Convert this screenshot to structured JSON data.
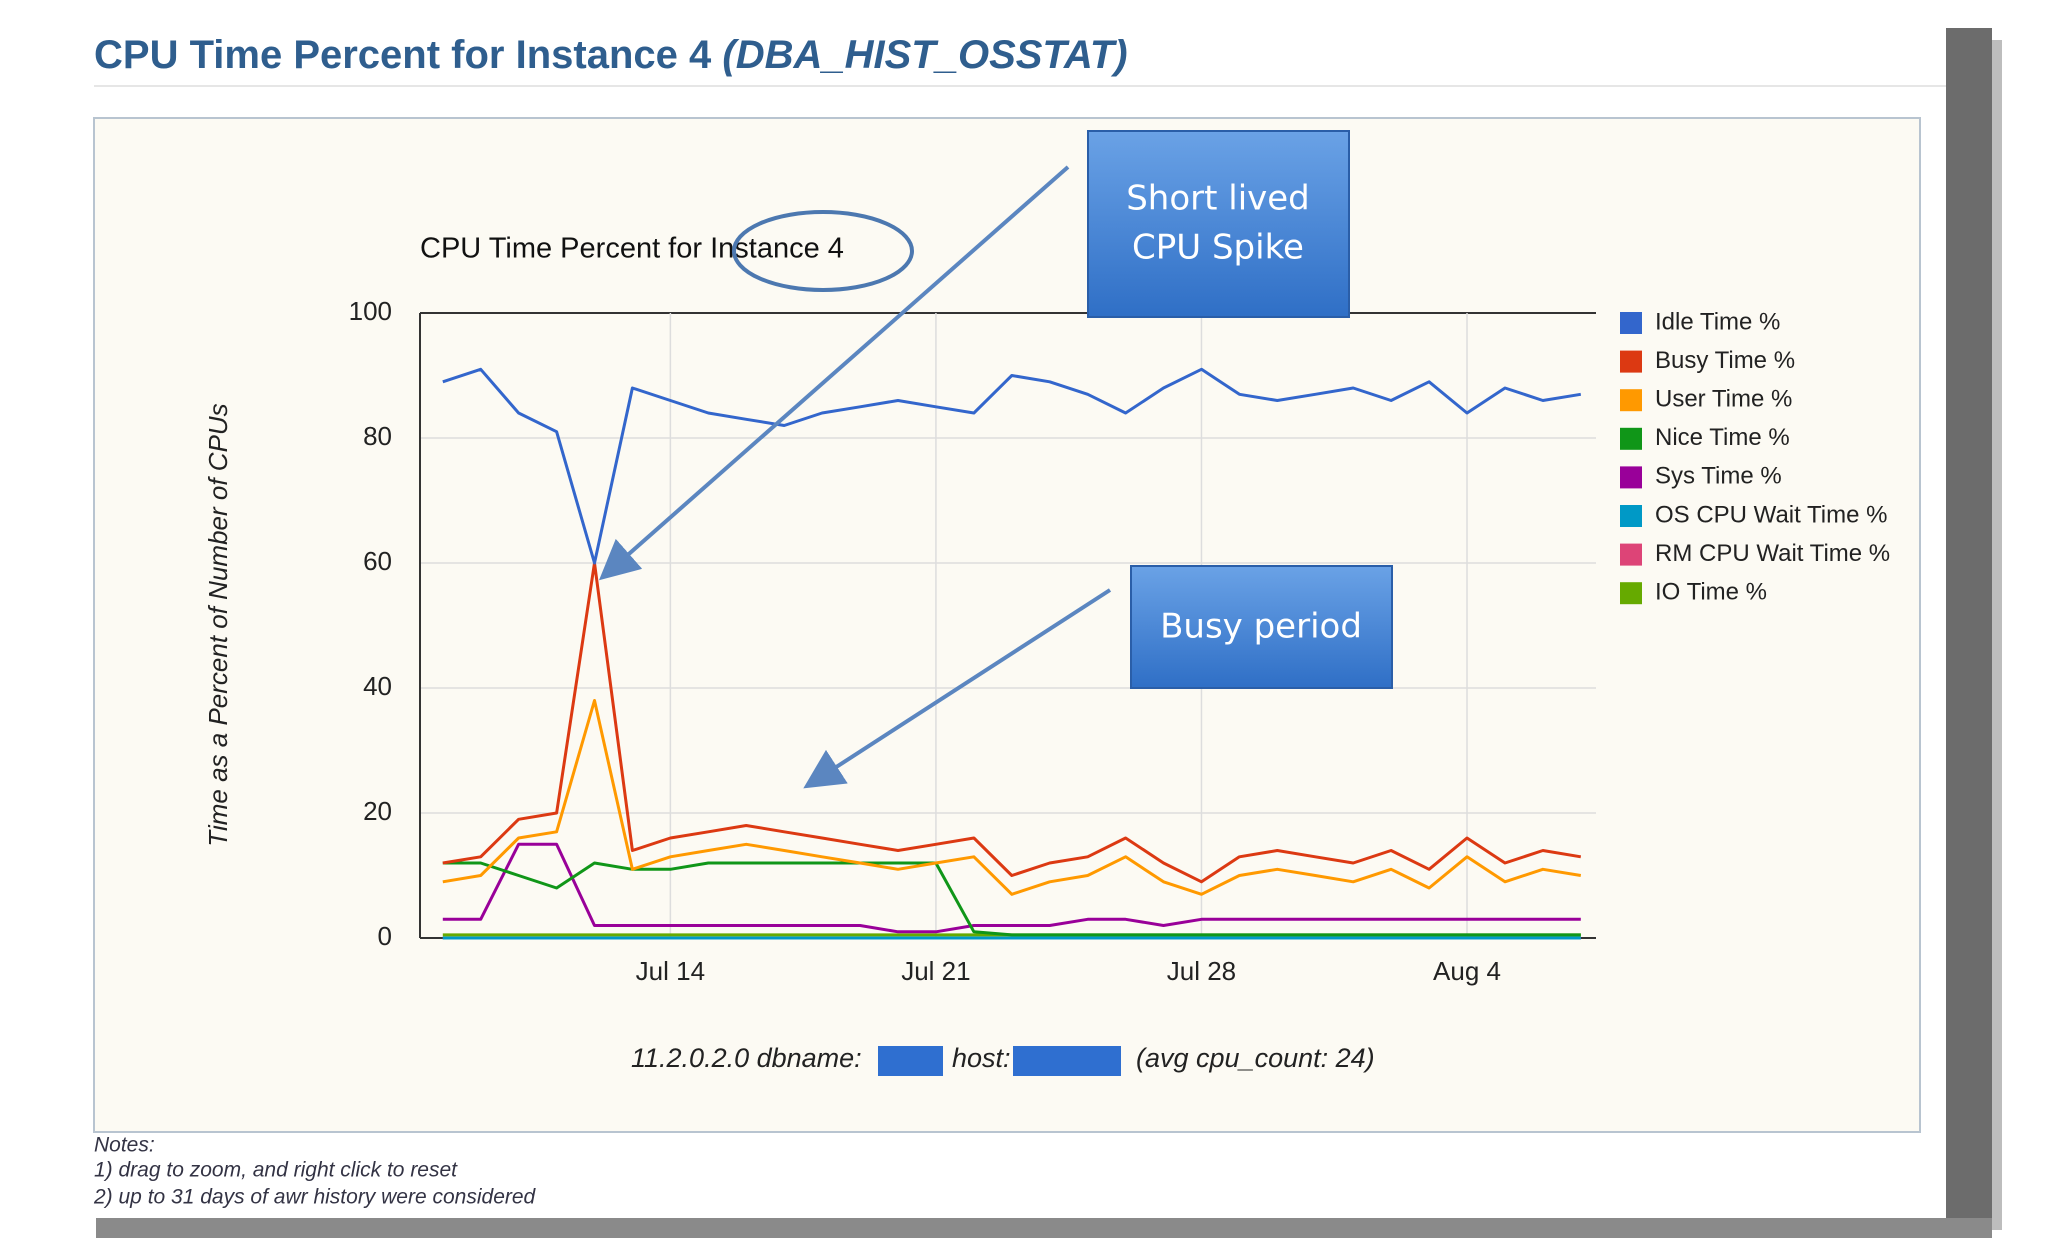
{
  "page_title": "CPU Time Percent for Instance 4",
  "page_title_suffix": "(DBA_HIST_OSSTAT)",
  "chart_data": {
    "type": "line",
    "title": "CPU Time Percent for Instance 4",
    "y_label": "Time as a Percent of Number of CPUs",
    "x": [
      "Jul 8",
      "Jul 9",
      "Jul 10",
      "Jul 11",
      "Jul 12",
      "Jul 13",
      "Jul 14",
      "Jul 15",
      "Jul 16",
      "Jul 17",
      "Jul 18",
      "Jul 19",
      "Jul 20",
      "Jul 21",
      "Jul 22",
      "Jul 23",
      "Jul 24",
      "Jul 25",
      "Jul 26",
      "Jul 27",
      "Jul 28",
      "Jul 29",
      "Jul 30",
      "Jul 31",
      "Aug 1",
      "Aug 2",
      "Aug 3",
      "Aug 4",
      "Aug 5",
      "Aug 6",
      "Aug 7"
    ],
    "xticks": [
      "Jul 14",
      "Jul 21",
      "Jul 28",
      "Aug 4"
    ],
    "ylim": [
      0,
      100
    ],
    "yticks": [
      0,
      20,
      40,
      60,
      80,
      100
    ],
    "grid": true,
    "legend": "right",
    "series": [
      {
        "name": "Idle Time %",
        "color": "#3366cc",
        "values": [
          89,
          91,
          84,
          81,
          60,
          88,
          86,
          84,
          83,
          82,
          84,
          85,
          86,
          85,
          84,
          90,
          89,
          87,
          84,
          88,
          91,
          87,
          86,
          87,
          88,
          86,
          89,
          84,
          88,
          86,
          87
        ]
      },
      {
        "name": "Busy Time %",
        "color": "#dc3912",
        "values": [
          12,
          13,
          19,
          20,
          60,
          14,
          16,
          17,
          18,
          17,
          16,
          15,
          14,
          15,
          16,
          10,
          12,
          13,
          16,
          12,
          9,
          13,
          14,
          13,
          12,
          14,
          11,
          16,
          12,
          14,
          13
        ]
      },
      {
        "name": "User Time %",
        "color": "#ff9900",
        "values": [
          9,
          10,
          16,
          17,
          38,
          11,
          13,
          14,
          15,
          14,
          13,
          12,
          11,
          12,
          13,
          7,
          9,
          10,
          13,
          9,
          7,
          10,
          11,
          10,
          9,
          11,
          8,
          13,
          9,
          11,
          10
        ]
      },
      {
        "name": "Nice Time %",
        "color": "#109618",
        "values": [
          12,
          12,
          10,
          8,
          12,
          11,
          11,
          12,
          12,
          12,
          12,
          12,
          12,
          12,
          1,
          0.5,
          0.5,
          0.5,
          0.5,
          0.5,
          0.5,
          0.5,
          0.5,
          0.5,
          0.5,
          0.5,
          0.5,
          0.5,
          0.5,
          0.5,
          0.5
        ]
      },
      {
        "name": "Sys Time %",
        "color": "#990099",
        "values": [
          3,
          3,
          15,
          15,
          2,
          2,
          2,
          2,
          2,
          2,
          2,
          2,
          1,
          1,
          2,
          2,
          2,
          3,
          3,
          2,
          3,
          3,
          3,
          3,
          3,
          3,
          3,
          3,
          3,
          3,
          3
        ]
      },
      {
        "name": "OS CPU Wait Time %",
        "color": "#0099c6",
        "values": [
          0,
          0,
          0,
          0,
          0,
          0,
          0,
          0,
          0,
          0,
          0,
          0,
          0,
          0,
          0,
          0,
          0,
          0,
          0,
          0,
          0,
          0,
          0,
          0,
          0,
          0,
          0,
          0,
          0,
          0,
          0
        ]
      },
      {
        "name": "RM CPU Wait Time %",
        "color": "#dd4477",
        "values": [
          0,
          0,
          0,
          0,
          0,
          0,
          0,
          0,
          0,
          0,
          0,
          0,
          0,
          0,
          0,
          0,
          0,
          0,
          0,
          0,
          0,
          0,
          0,
          0,
          0,
          0,
          0,
          0,
          0,
          0,
          0
        ]
      },
      {
        "name": "IO Time %",
        "color": "#66aa00",
        "values": [
          0.5,
          0.5,
          0.5,
          0.5,
          0.5,
          0.5,
          0.5,
          0.5,
          0.5,
          0.5,
          0.5,
          0.5,
          0.5,
          0.5,
          0.5,
          0.5,
          0.5,
          0.5,
          0.5,
          0.5,
          0.5,
          0.5,
          0.5,
          0.5,
          0.5,
          0.5,
          0.5,
          0.5,
          0.5,
          0.5,
          0.5
        ]
      }
    ]
  },
  "footer": [
    "11.2.0.2.0 dbname:",
    "host:",
    "(avg cpu_count: 24)"
  ],
  "callouts": [
    {
      "lines": [
        "Short lived",
        "CPU Spike"
      ]
    },
    {
      "lines": [
        "Busy period"
      ]
    }
  ],
  "notes": [
    "Notes:",
    "1) drag to zoom, and right click to reset",
    "2) up to 31 days of awr history were considered"
  ]
}
